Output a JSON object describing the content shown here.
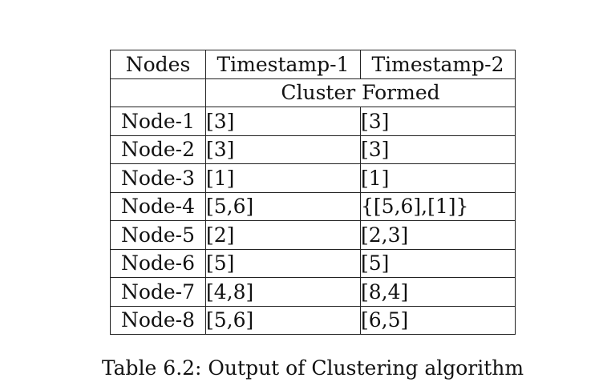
{
  "table": {
    "headers": [
      "Nodes",
      "Timestamp-1",
      "Timestamp-2"
    ],
    "subheader": "Cluster Formed",
    "rows": [
      {
        "node": "Node-1",
        "ts1": "[3]",
        "ts2": "[3]"
      },
      {
        "node": "Node-2",
        "ts1": "[3]",
        "ts2": "[3]"
      },
      {
        "node": "Node-3",
        "ts1": "[1]",
        "ts2": "[1]"
      },
      {
        "node": "Node-4",
        "ts1": "[5,6]",
        "ts2": "{[5,6],[1]}"
      },
      {
        "node": "Node-5",
        "ts1": "[2]",
        "ts2": "[2,3]"
      },
      {
        "node": "Node-6",
        "ts1": "[5]",
        "ts2": "[5]"
      },
      {
        "node": "Node-7",
        "ts1": "[4,8]",
        "ts2": "[8,4]"
      },
      {
        "node": "Node-8",
        "ts1": "[5,6]",
        "ts2": "[6,5]"
      }
    ]
  },
  "caption": "Table 6.2: Output of Clustering algorithm"
}
